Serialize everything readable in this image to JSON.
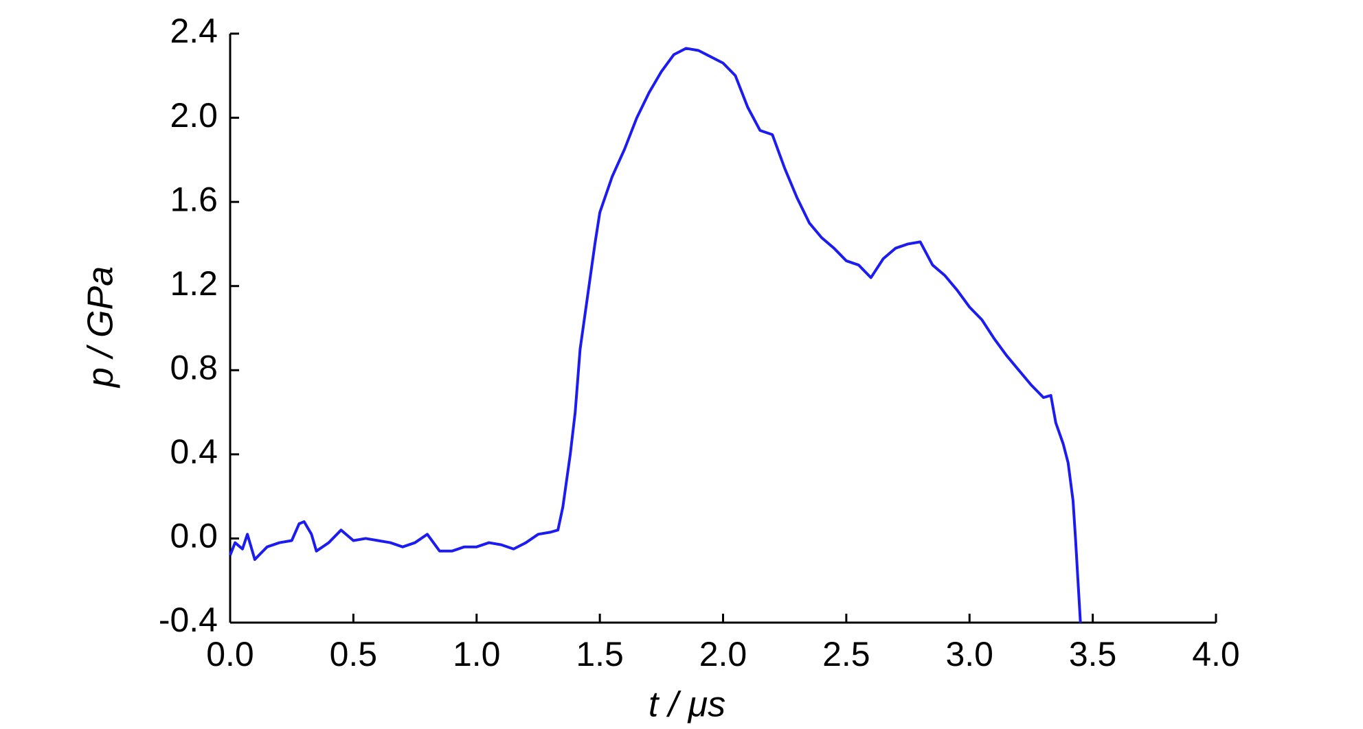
{
  "chart_data": {
    "type": "line",
    "xlabel": "t / μs",
    "ylabel": "p / GPa",
    "xlim": [
      0,
      4
    ],
    "ylim": [
      -0.4,
      2.4
    ],
    "xticks": [
      {
        "value": 0,
        "label": "0.0"
      },
      0.5,
      {
        "value": 1,
        "label": "1.0"
      },
      1.5,
      {
        "value": 2,
        "label": "2.0"
      },
      2.5,
      {
        "value": 3,
        "label": "3.0"
      },
      3.5,
      {
        "value": 4,
        "label": "4.0"
      }
    ],
    "yticks": [
      -0.4,
      {
        "value": 0,
        "label": "0.0"
      },
      0.4,
      0.8,
      1.2,
      1.6,
      {
        "value": 2,
        "label": "2.0"
      },
      2.4
    ],
    "grid": false,
    "series": [
      {
        "color": "#1c1cf0",
        "x": [
          0,
          0.02,
          0.05,
          0.07,
          0.1,
          0.15,
          0.2,
          0.25,
          0.28,
          0.3,
          0.33,
          0.35,
          0.4,
          0.45,
          0.5,
          0.55,
          0.6,
          0.65,
          0.7,
          0.75,
          0.8,
          0.85,
          0.9,
          0.95,
          1,
          1.05,
          1.1,
          1.15,
          1.2,
          1.25,
          1.3,
          1.33,
          1.35,
          1.38,
          1.4,
          1.42,
          1.45,
          1.48,
          1.5,
          1.55,
          1.6,
          1.65,
          1.7,
          1.75,
          1.8,
          1.85,
          1.9,
          1.95,
          2,
          2.05,
          2.1,
          2.15,
          2.2,
          2.25,
          2.3,
          2.35,
          2.4,
          2.45,
          2.5,
          2.55,
          2.6,
          2.65,
          2.7,
          2.75,
          2.8,
          2.85,
          2.9,
          2.95,
          3,
          3.05,
          3.1,
          3.15,
          3.2,
          3.25,
          3.3,
          3.33,
          3.35,
          3.38,
          3.4,
          3.42,
          3.43,
          3.44,
          3.45
        ],
        "values": [
          -0.08,
          -0.02,
          -0.05,
          0.02,
          -0.1,
          -0.04,
          -0.02,
          -0.01,
          0.07,
          0.08,
          0.02,
          -0.06,
          -0.02,
          0.04,
          -0.01,
          0,
          -0.01,
          -0.02,
          -0.04,
          -0.02,
          0.02,
          -0.06,
          -0.06,
          -0.04,
          -0.04,
          -0.02,
          -0.03,
          -0.05,
          -0.02,
          0.02,
          0.03,
          0.04,
          0.15,
          0.4,
          0.6,
          0.9,
          1.15,
          1.4,
          1.55,
          1.72,
          1.85,
          2,
          2.12,
          2.22,
          2.3,
          2.33,
          2.32,
          2.29,
          2.26,
          2.2,
          2.05,
          1.94,
          1.92,
          1.76,
          1.62,
          1.5,
          1.43,
          1.38,
          1.32,
          1.3,
          1.24,
          1.33,
          1.38,
          1.4,
          1.41,
          1.3,
          1.25,
          1.18,
          1.1,
          1.04,
          0.95,
          0.87,
          0.8,
          0.73,
          0.67,
          0.68,
          0.55,
          0.45,
          0.36,
          0.18,
          0,
          -0.2,
          -0.4
        ]
      }
    ]
  }
}
